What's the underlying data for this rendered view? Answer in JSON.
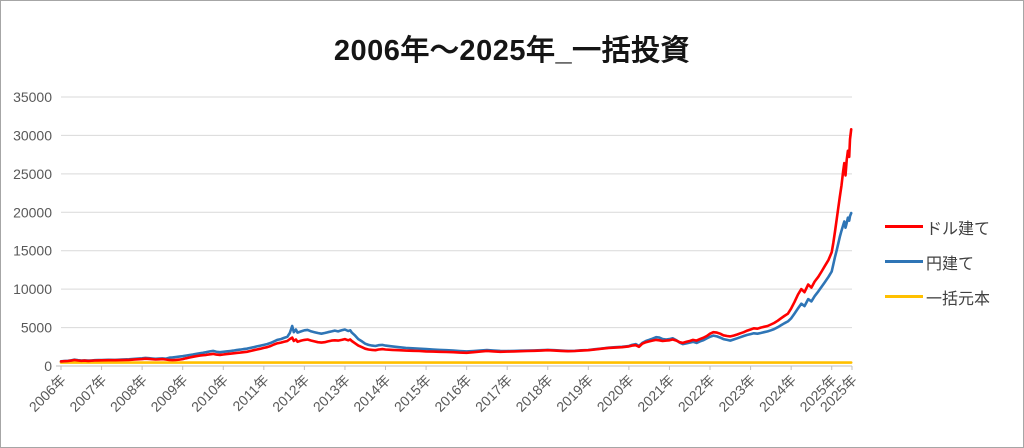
{
  "page": {
    "title": "2006年～2025年_一括投資"
  },
  "legend": {
    "items": [
      {
        "label": "ドル建て",
        "color": "#ff0000"
      },
      {
        "label": "円建て",
        "color": "#2e75b6"
      },
      {
        "label": "一括元本",
        "color": "#ffc000"
      }
    ]
  },
  "colors": {
    "gridline": "#d9d9d9",
    "axis_line": "#bfbfbf",
    "tick_label": "#595959",
    "title_text": "#151515"
  },
  "chart_data": {
    "type": "line",
    "title": "2006年～2025年_一括投資",
    "xlabel": "",
    "ylabel": "",
    "ylim": [
      0,
      35000
    ],
    "yticks": [
      0,
      5000,
      10000,
      15000,
      20000,
      25000,
      30000,
      35000
    ],
    "grid": "horizontal-only",
    "legend_position": "right",
    "x_start_year": 2006,
    "x_end": 2025.5,
    "xtick_labels": [
      "2006年",
      "2007年",
      "2008年",
      "2009年",
      "2010年",
      "2011年",
      "2012年",
      "2013年",
      "2014年",
      "2015年",
      "2016年",
      "2017年",
      "2018年",
      "2019年",
      "2020年",
      "2021年",
      "2022年",
      "2023年",
      "2024年",
      "2025年",
      "2025年"
    ],
    "series": [
      {
        "name": "ドル建て",
        "color": "#ff0000",
        "values_key": "dollar_values"
      },
      {
        "name": "円建て",
        "color": "#2e75b6",
        "values_key": "yen_values"
      },
      {
        "name": "一括元本",
        "color": "#ffc000",
        "values_key": "principal_constant"
      }
    ],
    "principal_constant": 450,
    "x_years": [
      2006.0,
      2006.08,
      2006.17,
      2006.25,
      2006.33,
      2006.42,
      2006.5,
      2006.58,
      2006.67,
      2006.75,
      2006.83,
      2006.92,
      2007.0,
      2007.17,
      2007.33,
      2007.5,
      2007.67,
      2007.83,
      2008.0,
      2008.08,
      2008.17,
      2008.25,
      2008.33,
      2008.42,
      2008.5,
      2008.58,
      2008.67,
      2008.75,
      2008.83,
      2008.92,
      2009.0,
      2009.08,
      2009.17,
      2009.25,
      2009.33,
      2009.42,
      2009.5,
      2009.58,
      2009.67,
      2009.75,
      2009.83,
      2009.92,
      2010.0,
      2010.08,
      2010.17,
      2010.25,
      2010.33,
      2010.42,
      2010.5,
      2010.58,
      2010.67,
      2010.75,
      2010.83,
      2010.92,
      2011.0,
      2011.08,
      2011.17,
      2011.25,
      2011.33,
      2011.42,
      2011.5,
      2011.58,
      2011.64,
      2011.7,
      2011.74,
      2011.79,
      2011.83,
      2011.92,
      2012.0,
      2012.08,
      2012.17,
      2012.25,
      2012.33,
      2012.42,
      2012.5,
      2012.58,
      2012.67,
      2012.75,
      2012.83,
      2012.92,
      2013.0,
      2013.08,
      2013.13,
      2013.17,
      2013.25,
      2013.33,
      2013.42,
      2013.5,
      2013.58,
      2013.67,
      2013.75,
      2013.83,
      2013.92,
      2014.0,
      2014.17,
      2014.33,
      2014.5,
      2014.67,
      2014.83,
      2015.0,
      2015.17,
      2015.33,
      2015.5,
      2015.67,
      2015.83,
      2016.0,
      2016.17,
      2016.33,
      2016.5,
      2016.67,
      2016.83,
      2017.0,
      2017.17,
      2017.33,
      2017.5,
      2017.67,
      2017.83,
      2018.0,
      2018.17,
      2018.33,
      2018.5,
      2018.67,
      2018.83,
      2019.0,
      2019.17,
      2019.33,
      2019.5,
      2019.67,
      2019.83,
      2020.0,
      2020.08,
      2020.17,
      2020.25,
      2020.33,
      2020.42,
      2020.5,
      2020.58,
      2020.67,
      2020.75,
      2020.83,
      2020.92,
      2021.0,
      2021.08,
      2021.17,
      2021.25,
      2021.33,
      2021.42,
      2021.5,
      2021.58,
      2021.67,
      2021.75,
      2021.83,
      2021.92,
      2022.0,
      2022.08,
      2022.17,
      2022.25,
      2022.33,
      2022.42,
      2022.5,
      2022.58,
      2022.67,
      2022.75,
      2022.83,
      2022.92,
      2023.0,
      2023.08,
      2023.17,
      2023.25,
      2023.33,
      2023.42,
      2023.5,
      2023.58,
      2023.67,
      2023.75,
      2023.83,
      2023.92,
      2024.0,
      2024.08,
      2024.17,
      2024.25,
      2024.33,
      2024.42,
      2024.5,
      2024.58,
      2024.67,
      2024.75,
      2024.83,
      2024.92,
      2025.0,
      2025.04,
      2025.08,
      2025.12,
      2025.16,
      2025.2,
      2025.24,
      2025.28,
      2025.31,
      2025.34,
      2025.37,
      2025.4,
      2025.43,
      2025.45,
      2025.48
    ],
    "dollar_values": [
      600,
      620,
      650,
      700,
      780,
      720,
      680,
      700,
      670,
      690,
      710,
      730,
      740,
      760,
      750,
      770,
      800,
      860,
      900,
      950,
      920,
      880,
      850,
      870,
      900,
      850,
      790,
      770,
      790,
      830,
      900,
      1000,
      1100,
      1200,
      1280,
      1350,
      1400,
      1450,
      1520,
      1570,
      1480,
      1450,
      1500,
      1550,
      1600,
      1650,
      1700,
      1750,
      1800,
      1850,
      1950,
      2050,
      2150,
      2250,
      2350,
      2450,
      2600,
      2800,
      2950,
      3050,
      3150,
      3250,
      3500,
      3690,
      3250,
      3450,
      3150,
      3300,
      3400,
      3450,
      3300,
      3200,
      3100,
      3050,
      3100,
      3200,
      3300,
      3350,
      3300,
      3400,
      3500,
      3350,
      3450,
      3250,
      2950,
      2650,
      2450,
      2250,
      2150,
      2100,
      2050,
      2150,
      2200,
      2150,
      2100,
      2050,
      2000,
      1980,
      1950,
      1900,
      1880,
      1850,
      1820,
      1800,
      1750,
      1720,
      1800,
      1880,
      1950,
      1900,
      1850,
      1870,
      1900,
      1930,
      1950,
      1980,
      2000,
      2050,
      2000,
      1960,
      1920,
      1950,
      2000,
      2050,
      2150,
      2250,
      2350,
      2400,
      2450,
      2550,
      2650,
      2700,
      2500,
      2900,
      3100,
      3200,
      3300,
      3400,
      3350,
      3250,
      3300,
      3350,
      3450,
      3300,
      3100,
      3000,
      3150,
      3250,
      3400,
      3300,
      3500,
      3650,
      3900,
      4200,
      4400,
      4350,
      4200,
      4000,
      3900,
      3850,
      3950,
      4100,
      4250,
      4400,
      4600,
      4750,
      4900,
      4850,
      5000,
      5100,
      5200,
      5400,
      5600,
      5900,
      6200,
      6500,
      6800,
      7500,
      8300,
      9300,
      10000,
      9600,
      10600,
      10200,
      11000,
      11600,
      12300,
      13000,
      13800,
      14800,
      16000,
      17500,
      19000,
      20500,
      22000,
      23500,
      25300,
      26400,
      24800,
      26800,
      28000,
      27200,
      29500,
      30800
    ],
    "yen_values": [
      610,
      640,
      680,
      730,
      820,
      750,
      710,
      730,
      700,
      720,
      750,
      770,
      780,
      810,
      800,
      830,
      870,
      940,
      1000,
      1060,
      1020,
      970,
      940,
      960,
      990,
      950,
      1080,
      1120,
      1170,
      1220,
      1280,
      1350,
      1430,
      1500,
      1580,
      1650,
      1720,
      1800,
      1900,
      1960,
      1850,
      1800,
      1850,
      1900,
      1950,
      2000,
      2080,
      2130,
      2200,
      2250,
      2350,
      2450,
      2550,
      2650,
      2750,
      2850,
      3000,
      3200,
      3400,
      3500,
      3650,
      3800,
      4300,
      5200,
      4400,
      4750,
      4350,
      4500,
      4650,
      4700,
      4500,
      4400,
      4300,
      4200,
      4300,
      4400,
      4500,
      4600,
      4500,
      4650,
      4750,
      4550,
      4650,
      4350,
      3950,
      3500,
      3200,
      2900,
      2750,
      2650,
      2600,
      2700,
      2750,
      2650,
      2550,
      2450,
      2350,
      2300,
      2250,
      2200,
      2150,
      2100,
      2050,
      2000,
      1950,
      1900,
      1950,
      2020,
      2080,
      2020,
      1960,
      1950,
      1970,
      1990,
      2000,
      2030,
      2050,
      2100,
      2060,
      2000,
      1960,
      1980,
      2040,
      2080,
      2180,
      2280,
      2380,
      2450,
      2500,
      2600,
      2750,
      2850,
      2600,
      3000,
      3250,
      3400,
      3550,
      3750,
      3700,
      3500,
      3450,
      3500,
      3600,
      3350,
      3050,
      2850,
      2950,
      3050,
      3150,
      3000,
      3200,
      3350,
      3600,
      3800,
      3950,
      3850,
      3700,
      3500,
      3400,
      3300,
      3450,
      3600,
      3750,
      3900,
      4050,
      4150,
      4250,
      4200,
      4300,
      4400,
      4500,
      4650,
      4800,
      5050,
      5300,
      5550,
      5800,
      6200,
      6800,
      7500,
      8100,
      7800,
      8700,
      8400,
      9100,
      9700,
      10300,
      10900,
      11600,
      12300,
      13200,
      14200,
      15000,
      15900,
      16800,
      17600,
      18300,
      18800,
      18000,
      18600,
      19300,
      18900,
      19500,
      19900
    ]
  }
}
